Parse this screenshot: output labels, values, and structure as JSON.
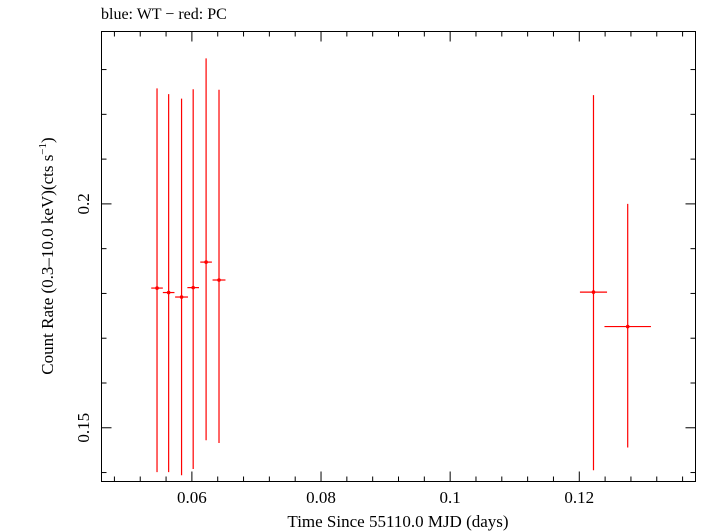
{
  "chart_data": {
    "type": "scatter",
    "title": "blue: WT − red: PC",
    "xlabel": "Time Since 55110.0 MJD (days)",
    "ylabel_main": "Count Rate (0.3–10.0 keV)(cts s",
    "ylabel_sup": "−1",
    "ylabel_end": ")",
    "xlim": [
      0.046,
      0.138
    ],
    "ylim": [
      0.138,
      0.2385
    ],
    "xticks": [
      0.06,
      0.08,
      0.1,
      0.12
    ],
    "xtick_labels": [
      "0.06",
      "0.08",
      "0.1",
      "0.12"
    ],
    "yticks": [
      0.15,
      0.2
    ],
    "ytick_labels": [
      "0.15",
      "0.2"
    ],
    "grid": false,
    "series": [
      {
        "color": "#ff0000",
        "points": [
          {
            "x": 0.0546,
            "xerr": 0.0009,
            "y": 0.1812,
            "ylo": 0.1401,
            "yhi": 0.2258
          },
          {
            "x": 0.0564,
            "xerr": 0.0009,
            "y": 0.1802,
            "ylo": 0.1401,
            "yhi": 0.2245
          },
          {
            "x": 0.0584,
            "xerr": 0.001,
            "y": 0.1792,
            "ylo": 0.1394,
            "yhi": 0.2235
          },
          {
            "x": 0.0602,
            "xerr": 0.0009,
            "y": 0.1813,
            "ylo": 0.1408,
            "yhi": 0.2256
          },
          {
            "x": 0.0622,
            "xerr": 0.0009,
            "y": 0.187,
            "ylo": 0.1472,
            "yhi": 0.2325
          },
          {
            "x": 0.0642,
            "xerr": 0.001,
            "y": 0.183,
            "ylo": 0.1466,
            "yhi": 0.2255
          },
          {
            "x": 0.1222,
            "xerr": 0.0021,
            "y": 0.1803,
            "ylo": 0.1405,
            "yhi": 0.2243
          },
          {
            "x": 0.1275,
            "xerr": 0.0036,
            "y": 0.1726,
            "ylo": 0.1456,
            "yhi": 0.2
          }
        ]
      }
    ]
  }
}
